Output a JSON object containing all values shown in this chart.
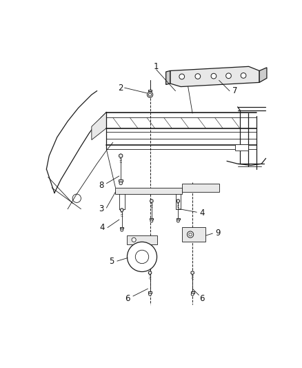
{
  "background_color": "#ffffff",
  "figure_width": 4.38,
  "figure_height": 5.33,
  "dpi": 100,
  "line_color": "#1a1a1a",
  "fill_light": "#e8e8e8",
  "fill_mid": "#cccccc",
  "fill_dark": "#aaaaaa"
}
